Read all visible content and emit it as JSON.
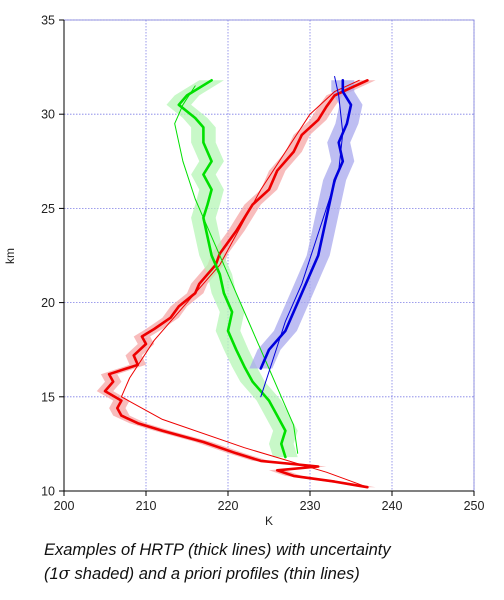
{
  "chart_data": {
    "type": "line",
    "xlabel": "K",
    "ylabel": "km",
    "xlim": [
      200,
      250
    ],
    "ylim": [
      10,
      35
    ],
    "xticks": [
      200,
      210,
      220,
      230,
      240,
      250
    ],
    "yticks": [
      10,
      15,
      20,
      25,
      30,
      35
    ],
    "grid": true,
    "series": [
      {
        "color": "#ee0000",
        "band_color": "#f6a5a5",
        "style": "thick",
        "uncertainty": 1.0,
        "points": [
          [
            237,
            10.2
          ],
          [
            233,
            10.5
          ],
          [
            228,
            10.8
          ],
          [
            226,
            11.1
          ],
          [
            231,
            11.3
          ],
          [
            224,
            11.6
          ],
          [
            221,
            12.0
          ],
          [
            217,
            12.6
          ],
          [
            212,
            13.2
          ],
          [
            209,
            13.6
          ],
          [
            207,
            14.0
          ],
          [
            206.5,
            14.4
          ],
          [
            207,
            14.8
          ],
          [
            205,
            15.3
          ],
          [
            206,
            15.8
          ],
          [
            205.5,
            16.2
          ],
          [
            209,
            16.7
          ],
          [
            208.5,
            17.2
          ],
          [
            210,
            17.8
          ],
          [
            209.5,
            18.2
          ],
          [
            211,
            18.6
          ],
          [
            213,
            19.2
          ],
          [
            214,
            19.8
          ],
          [
            216,
            20.5
          ],
          [
            216.5,
            21.0
          ],
          [
            217.5,
            21.5
          ],
          [
            218.5,
            22.0
          ],
          [
            219,
            22.6
          ],
          [
            220,
            23.2
          ],
          [
            221,
            23.8
          ],
          [
            222,
            24.5
          ],
          [
            223,
            25.2
          ],
          [
            225,
            26.0
          ],
          [
            226,
            27.0
          ],
          [
            228,
            28.0
          ],
          [
            229,
            28.9
          ],
          [
            231,
            29.7
          ],
          [
            232,
            30.4
          ],
          [
            233,
            31.0
          ],
          [
            235,
            31.4
          ],
          [
            237,
            31.8
          ]
        ]
      },
      {
        "color": "#ee0000",
        "style": "thin",
        "points": [
          [
            237,
            10.2
          ],
          [
            232,
            11.0
          ],
          [
            222,
            12.3
          ],
          [
            212,
            13.8
          ],
          [
            207,
            15.0
          ],
          [
            208,
            16.0
          ],
          [
            211,
            18.0
          ],
          [
            215,
            20.0
          ],
          [
            219,
            22.0
          ],
          [
            221.5,
            24.0
          ],
          [
            224,
            26.0
          ],
          [
            227,
            28.0
          ],
          [
            230,
            30.0
          ],
          [
            233,
            31.2
          ],
          [
            236,
            31.8
          ]
        ]
      },
      {
        "color": "#00e000",
        "band_color": "#b5f5b5",
        "style": "thick",
        "uncertainty": 1.5,
        "points": [
          [
            227,
            11.8
          ],
          [
            226.5,
            12.5
          ],
          [
            227,
            13.2
          ],
          [
            226,
            14.0
          ],
          [
            225,
            14.8
          ],
          [
            223,
            15.8
          ],
          [
            222,
            16.6
          ],
          [
            221,
            17.5
          ],
          [
            220,
            18.5
          ],
          [
            220.5,
            19.5
          ],
          [
            219.5,
            20.5
          ],
          [
            219,
            21.5
          ],
          [
            218,
            22.5
          ],
          [
            217.5,
            23.5
          ],
          [
            217,
            24.5
          ],
          [
            217.5,
            25.2
          ],
          [
            218,
            26.0
          ],
          [
            217,
            26.8
          ],
          [
            218,
            27.5
          ],
          [
            217,
            28.5
          ],
          [
            217,
            29.3
          ],
          [
            216,
            29.8
          ],
          [
            214,
            30.5
          ],
          [
            215,
            31.0
          ],
          [
            218,
            31.8
          ]
        ]
      },
      {
        "color": "#00e000",
        "style": "thin",
        "points": [
          [
            228.5,
            12.0
          ],
          [
            228,
            13.5
          ],
          [
            226,
            15.5
          ],
          [
            224,
            17.5
          ],
          [
            222,
            19.5
          ],
          [
            220,
            21.5
          ],
          [
            218,
            23.5
          ],
          [
            216,
            25.5
          ],
          [
            214.5,
            27.5
          ],
          [
            213.5,
            29.5
          ],
          [
            214.5,
            30.5
          ],
          [
            216,
            31.5
          ]
        ]
      },
      {
        "color": "#0000dd",
        "band_color": "#a8a8ee",
        "style": "thick",
        "uncertainty": 1.4,
        "points": [
          [
            224,
            16.5
          ],
          [
            225,
            17.5
          ],
          [
            227,
            18.5
          ],
          [
            228,
            19.5
          ],
          [
            229,
            20.5
          ],
          [
            230,
            21.5
          ],
          [
            231,
            22.5
          ],
          [
            231.5,
            23.5
          ],
          [
            232,
            24.5
          ],
          [
            232.5,
            25.5
          ],
          [
            233,
            26.5
          ],
          [
            234,
            27.5
          ],
          [
            233.5,
            28.5
          ],
          [
            234.5,
            29.5
          ],
          [
            235,
            30.5
          ],
          [
            234,
            31.2
          ],
          [
            234,
            31.8
          ]
        ]
      },
      {
        "color": "#0000dd",
        "style": "thin",
        "points": [
          [
            224,
            15.0
          ],
          [
            225.5,
            17.0
          ],
          [
            227,
            19.0
          ],
          [
            229,
            21.0
          ],
          [
            230.5,
            23.0
          ],
          [
            232,
            25.0
          ],
          [
            233.5,
            27.0
          ],
          [
            234,
            29.0
          ],
          [
            233.5,
            31.0
          ],
          [
            233,
            32.0
          ]
        ]
      }
    ]
  },
  "caption": {
    "line1": "Examples of HRTP (thick lines) with uncertainty",
    "line2_pre": "(1",
    "sigma": "σ",
    "line2_post": " shaded) and a priori profiles (thin lines)"
  }
}
